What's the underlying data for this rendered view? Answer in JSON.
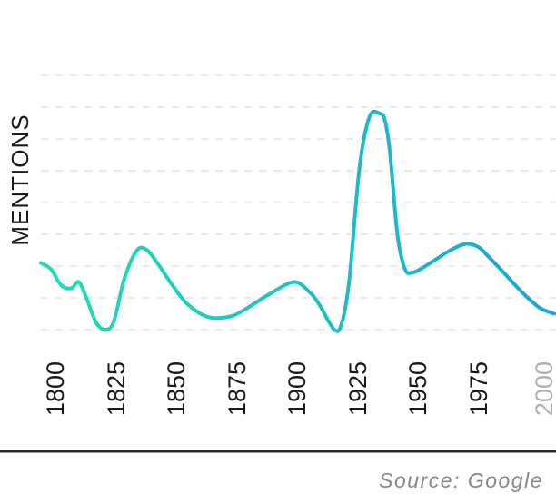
{
  "chart_data": {
    "type": "line",
    "ylabel": "MENTIONS",
    "xlabel": "",
    "source": "Source: Google",
    "x_ticks": [
      "1800",
      "1825",
      "1850",
      "1875",
      "1900",
      "1925",
      "1950",
      "1975",
      "2000"
    ],
    "faded_ticks": [
      "2000"
    ],
    "xlim": [
      1800,
      2003
    ],
    "ylim": [
      0,
      9
    ],
    "grid": true,
    "gradient_colors": [
      "#22ddb6",
      "#1aa6d6"
    ],
    "series": [
      {
        "x": [
          1800,
          1804,
          1808,
          1812,
          1815,
          1818,
          1822,
          1826,
          1829,
          1833,
          1838,
          1842,
          1846,
          1852,
          1858,
          1866,
          1874,
          1880,
          1890,
          1900,
          1906,
          1910,
          1916,
          1919,
          1922,
          1926,
          1930,
          1934,
          1936,
          1938,
          1941,
          1944,
          1947,
          1950,
          1956,
          1962,
          1968,
          1973,
          1977,
          1983,
          1990,
          1997,
          2003
        ],
        "y": [
          3.1,
          2.9,
          2.4,
          2.3,
          2.5,
          2.0,
          1.2,
          1.0,
          1.3,
          2.6,
          3.5,
          3.5,
          3.1,
          2.4,
          1.8,
          1.4,
          1.4,
          1.6,
          2.1,
          2.5,
          2.2,
          1.8,
          1.0,
          1.2,
          2.6,
          6.1,
          7.7,
          7.8,
          7.6,
          6.6,
          4.0,
          2.9,
          2.8,
          2.9,
          3.2,
          3.5,
          3.7,
          3.6,
          3.3,
          2.8,
          2.2,
          1.7,
          1.5
        ]
      }
    ]
  }
}
